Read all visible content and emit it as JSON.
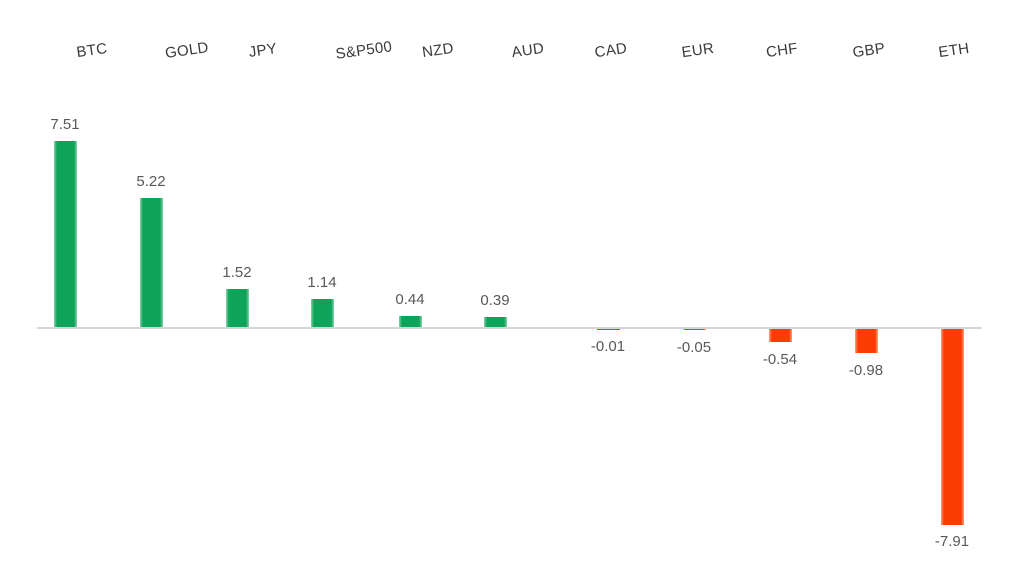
{
  "chart_data": {
    "type": "bar",
    "title": "",
    "xlabel": "",
    "ylabel": "",
    "categories": [
      "BTC",
      "GOLD",
      "JPY",
      "S&P500",
      "NZD",
      "AUD",
      "CAD",
      "EUR",
      "CHF",
      "GBP",
      "ETH"
    ],
    "values": [
      7.51,
      5.22,
      1.52,
      1.14,
      0.44,
      0.39,
      -0.01,
      -0.05,
      -0.54,
      -0.98,
      -7.91
    ],
    "value_labels": [
      "7.51",
      "5.22",
      "1.52",
      "1.14",
      "0.44",
      "0.39",
      "-0.01",
      "-0.05",
      "-0.54",
      "-0.98",
      "-7.91"
    ],
    "layout_hints": {
      "category_label_position": "top",
      "category_label_rotation_deg": -8,
      "data_label_position": "outside-end",
      "gridlines": false,
      "legend": "none",
      "y_axis": "hidden",
      "x_axis_line": "shown"
    },
    "colors": {
      "positive_bar": "#0da359",
      "negative_bar": "#fa3c02",
      "axis_line": "#d5d5d5",
      "value_label": "#595959",
      "category_label": "#3a3a3a",
      "background": "#ffffff"
    }
  }
}
